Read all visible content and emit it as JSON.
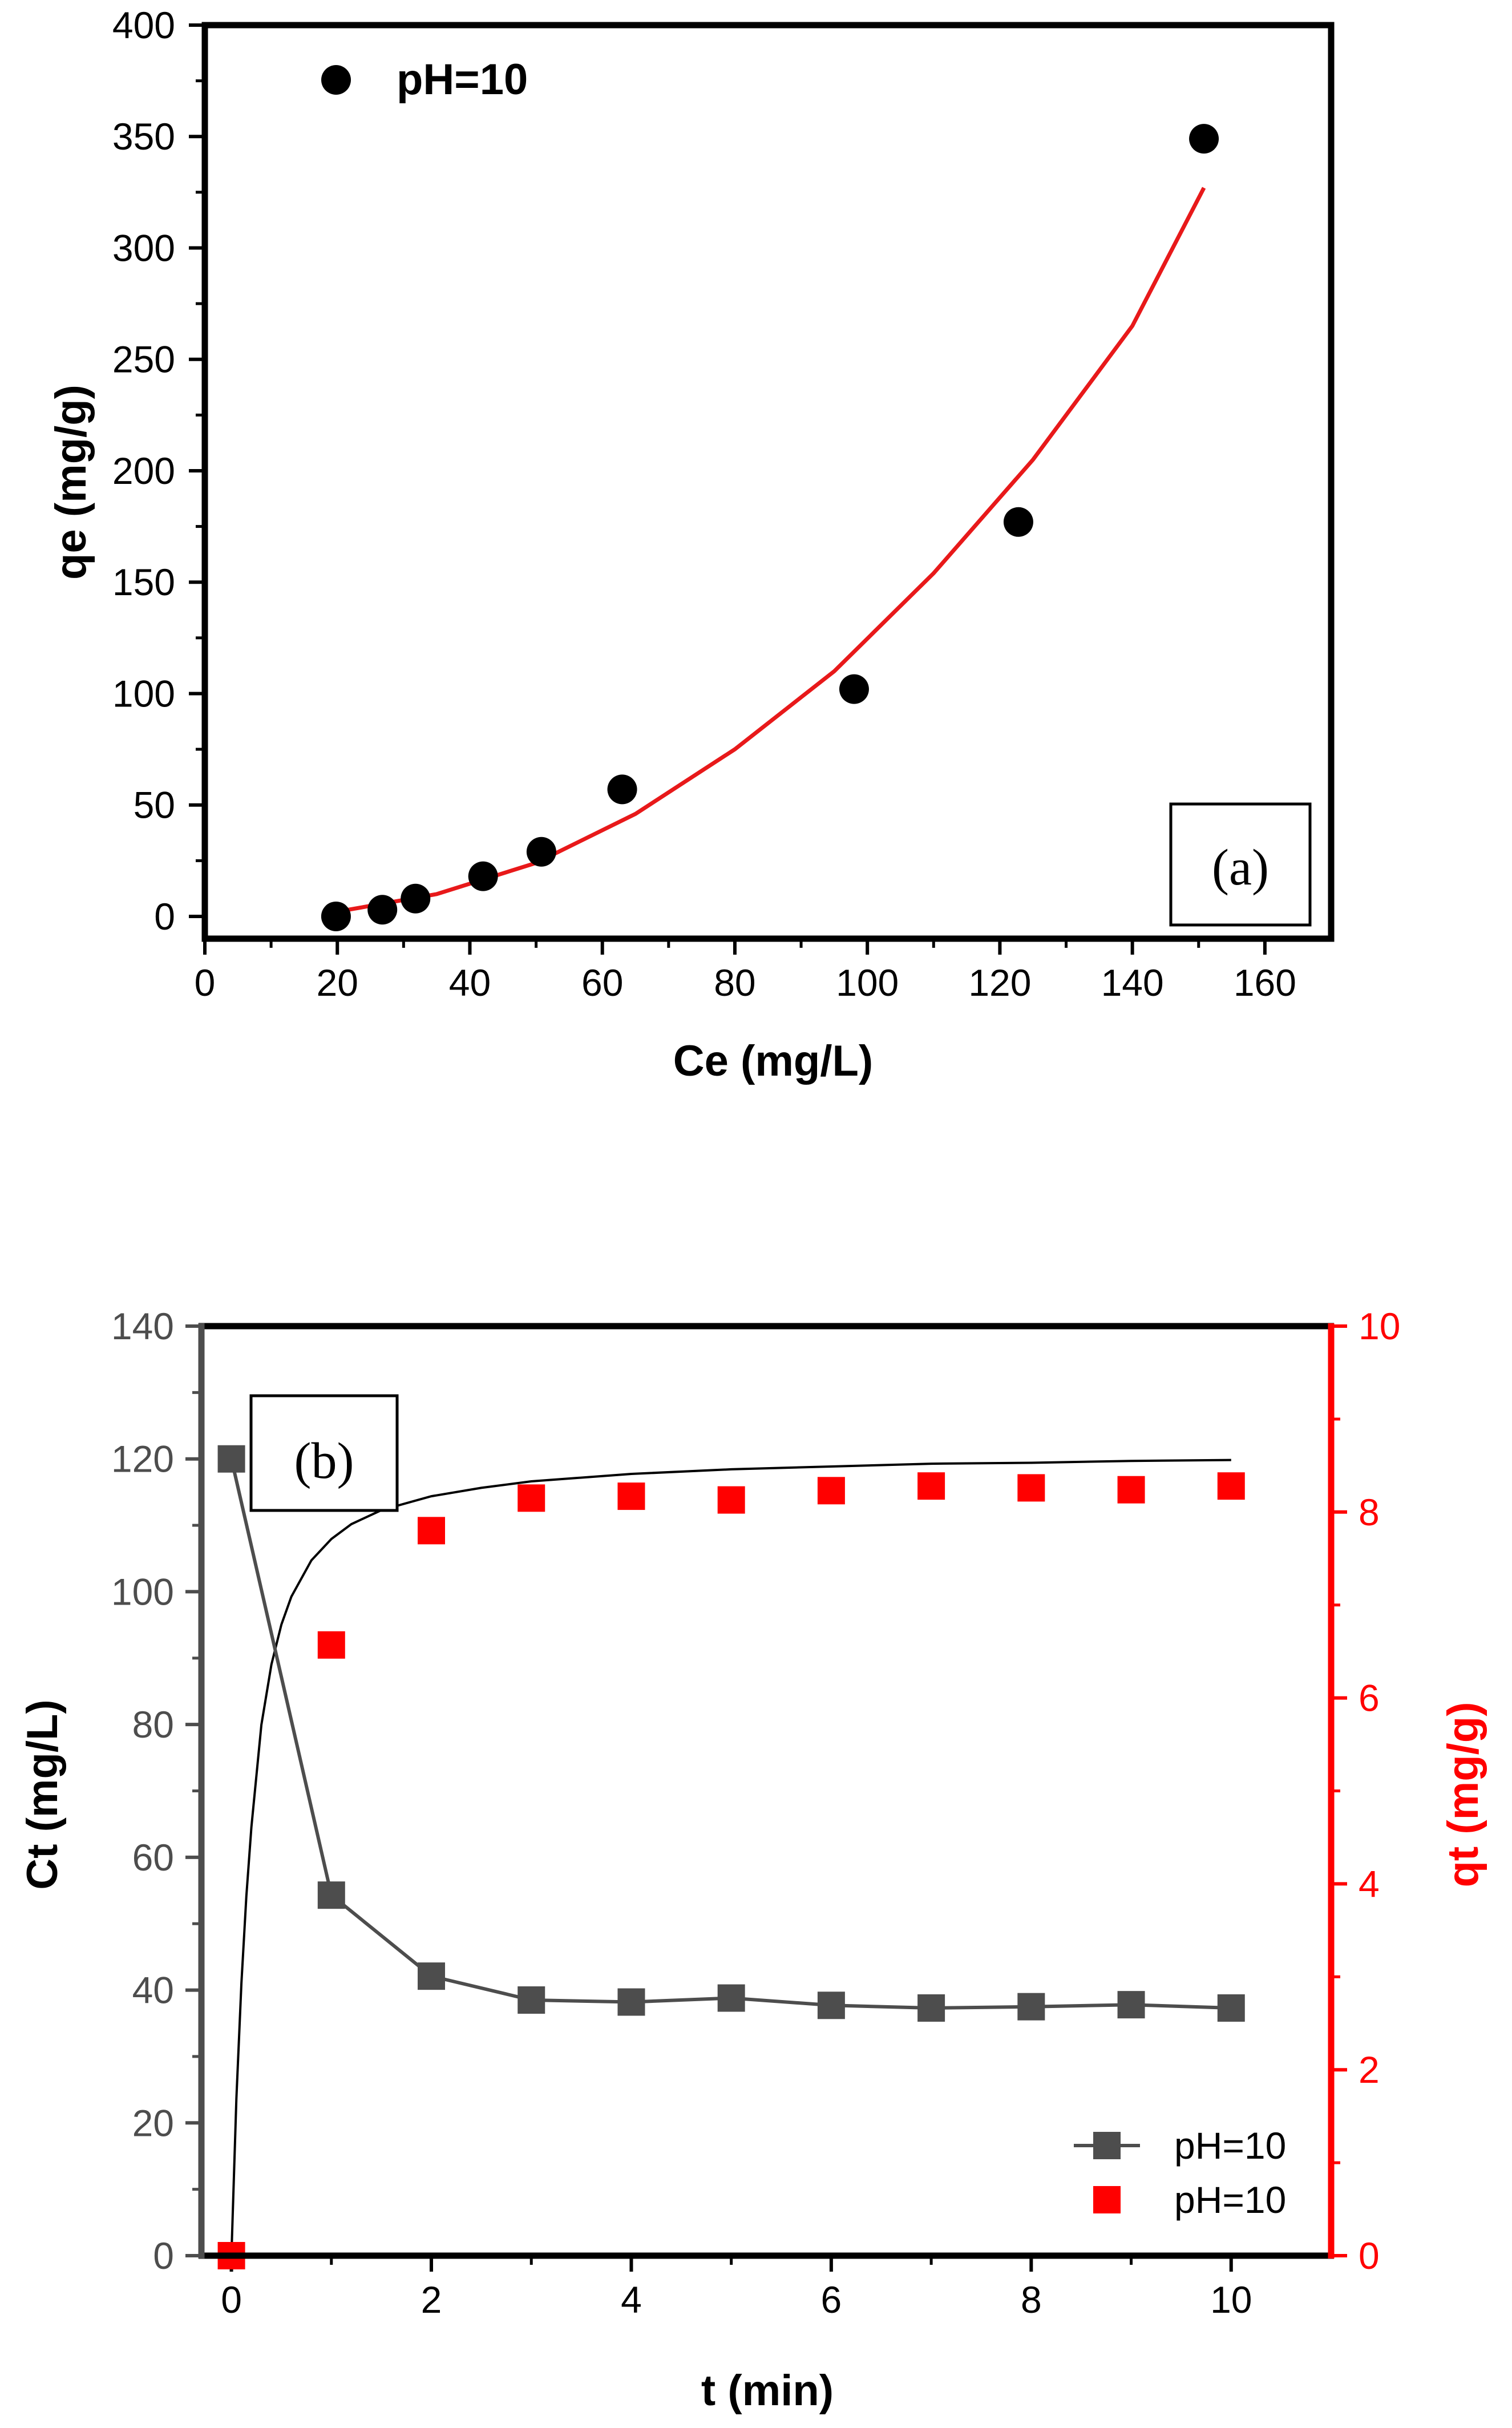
{
  "chart_data": [
    {
      "panel": "(a)",
      "type": "scatter",
      "xlabel": "Ce (mg/L)",
      "ylabel": "qe (mg/g)",
      "xlim": [
        0,
        170
      ],
      "ylim": [
        -10,
        400
      ],
      "xticks": [
        0,
        20,
        40,
        60,
        80,
        100,
        120,
        140,
        160
      ],
      "yticks": [
        0,
        50,
        100,
        150,
        200,
        250,
        300,
        350,
        400
      ],
      "legend": [
        {
          "label": "pH=10",
          "marker": "circle",
          "color": "#000000"
        }
      ],
      "legend_position": "top-left",
      "series": [
        {
          "name": "pH=10",
          "marker": "circle",
          "color": "#000000",
          "x": [
            19.8,
            26.8,
            31.8,
            42.0,
            50.8,
            63.0,
            98.0,
            122.8,
            150.8
          ],
          "y": [
            0,
            3,
            8,
            18,
            29,
            57,
            102,
            177,
            349
          ]
        },
        {
          "name": "fit",
          "line": true,
          "color": "#e8191a",
          "x": [
            19.8,
            35,
            50,
            65,
            80,
            95,
            110,
            125,
            140,
            150.8
          ],
          "y": [
            2,
            10,
            24,
            46,
            75,
            110,
            154,
            205,
            265,
            327
          ]
        }
      ]
    },
    {
      "panel": "(b)",
      "type": "scatter",
      "xlabel": "t (min)",
      "ylabel": "Ct (mg/L)",
      "ylabel_right": "qt (mg/g)",
      "xlim": [
        -0.3,
        11
      ],
      "ylim": [
        0,
        140
      ],
      "ylim_right": [
        0,
        10
      ],
      "xticks": [
        0,
        2,
        4,
        6,
        8,
        10
      ],
      "yticks": [
        0,
        20,
        40,
        60,
        80,
        100,
        120,
        140
      ],
      "yticks_right": [
        0,
        2,
        4,
        6,
        8,
        10
      ],
      "legend": [
        {
          "label": "pH=10",
          "marker": "square-line",
          "color": "#4d4d4d"
        },
        {
          "label": "pH=10",
          "marker": "square",
          "color": "#ff0000"
        }
      ],
      "legend_position": "bottom-right",
      "series": [
        {
          "name": "pH=10",
          "axis": "left",
          "marker": "square",
          "line": true,
          "color": "#4d4d4d",
          "x": [
            0,
            1,
            2,
            3,
            4,
            5,
            6,
            7,
            8,
            9,
            10
          ],
          "y": [
            120,
            54.3,
            42.1,
            38.5,
            38.2,
            38.8,
            37.7,
            37.3,
            37.5,
            37.8,
            37.3
          ]
        },
        {
          "name": "pH=10",
          "axis": "right",
          "marker": "square",
          "color": "#ff0000",
          "x": [
            0,
            1,
            2,
            3,
            4,
            5,
            6,
            7,
            8,
            9,
            10
          ],
          "y": [
            0,
            6.57,
            7.8,
            8.15,
            8.17,
            8.13,
            8.23,
            8.28,
            8.26,
            8.24,
            8.28
          ]
        },
        {
          "name": "fit",
          "axis": "right",
          "line": true,
          "color": "#000000",
          "x": [
            0,
            0.05,
            0.1,
            0.15,
            0.2,
            0.3,
            0.4,
            0.5,
            0.6,
            0.8,
            1,
            1.2,
            1.5,
            2,
            2.5,
            3,
            4,
            5,
            6,
            7,
            8,
            9,
            10
          ],
          "y": [
            0,
            1.69,
            2.93,
            3.87,
            4.61,
            5.71,
            6.36,
            6.79,
            7.09,
            7.48,
            7.71,
            7.87,
            8.02,
            8.17,
            8.26,
            8.33,
            8.41,
            8.46,
            8.49,
            8.52,
            8.53,
            8.55,
            8.56
          ]
        }
      ]
    }
  ]
}
